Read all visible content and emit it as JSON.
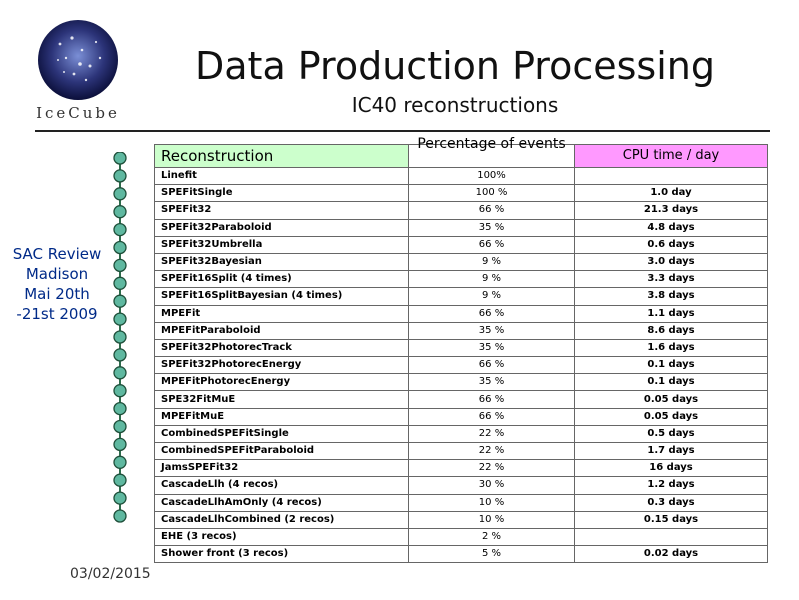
{
  "slide": {
    "title": "Data Production Processing",
    "subtitle": "IC40 reconstructions",
    "logo_text": "IceCube",
    "side_note": [
      "SAC Review",
      "Madison",
      "Mai 20th",
      "-21st  2009"
    ],
    "date": "03/02/2015",
    "colors": {
      "header_reconstruction": "#ccffcc",
      "header_cpu": "#ff99ff",
      "side_text": "#002a88"
    }
  },
  "table": {
    "headers": [
      "Reconstruction",
      "Percentage of events",
      "CPU time / day"
    ],
    "rows": [
      [
        "Linefit",
        "100%",
        ""
      ],
      [
        "SPEFitSingle",
        "100 %",
        "1.0 day"
      ],
      [
        "SPEFit32",
        "66 %",
        "21.3 days"
      ],
      [
        "SPEFit32Paraboloid",
        "35 %",
        "4.8 days"
      ],
      [
        "SPEFit32Umbrella",
        "66 %",
        "0.6 days"
      ],
      [
        "SPEFit32Bayesian",
        "9 %",
        "3.0 days"
      ],
      [
        "SPEFit16Split (4 times)",
        "9 %",
        "3.3 days"
      ],
      [
        "SPEFit16SplitBayesian (4 times)",
        "9 %",
        "3.8 days"
      ],
      [
        "MPEFit",
        "66 %",
        "1.1 days"
      ],
      [
        "MPEFitParaboloid",
        "35 %",
        "8.6 days"
      ],
      [
        "SPEFit32PhotorecTrack",
        "35 %",
        "1.6 days"
      ],
      [
        "SPEFit32PhotorecEnergy",
        "66 %",
        "0.1 days"
      ],
      [
        "MPEFitPhotorecEnergy",
        "35 %",
        "0.1 days"
      ],
      [
        "SPE32FitMuE",
        "66 %",
        "0.05 days"
      ],
      [
        "MPEFitMuE",
        "66 %",
        "0.05 days"
      ],
      [
        "CombinedSPEFitSingle",
        "22 %",
        "0.5 days"
      ],
      [
        "CombinedSPEFitParaboloid",
        "22 %",
        "1.7 days"
      ],
      [
        "JamsSPEFit32",
        "22 %",
        "16 days"
      ],
      [
        "CascadeLlh (4 recos)",
        "30 %",
        "1.2 days"
      ],
      [
        "CascadeLlhAmOnly (4 recos)",
        "10 %",
        "0.3 days"
      ],
      [
        "CascadeLlhCombined (2 recos)",
        "10 %",
        "0.15 days"
      ],
      [
        "EHE (3 recos)",
        "2 %",
        ""
      ],
      [
        "Shower front (3 recos)",
        "5 %",
        "0.02 days"
      ]
    ]
  }
}
